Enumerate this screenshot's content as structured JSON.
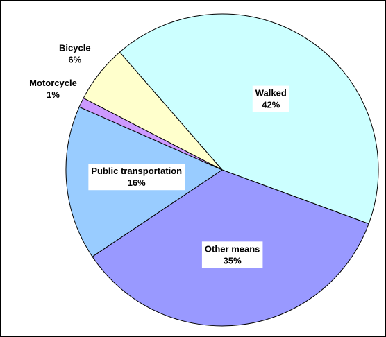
{
  "chart_data": {
    "type": "pie",
    "categories": [
      "Walked",
      "Other means",
      "Public transportation",
      "Motorcycle",
      "Bicycle"
    ],
    "values": [
      42,
      35,
      16,
      1,
      6
    ],
    "value_labels": [
      "42%",
      "35%",
      "16%",
      "1%",
      "6%"
    ],
    "colors": [
      "#ccffff",
      "#9999ff",
      "#99ccff",
      "#cc99ff",
      "#ffffcc"
    ]
  }
}
